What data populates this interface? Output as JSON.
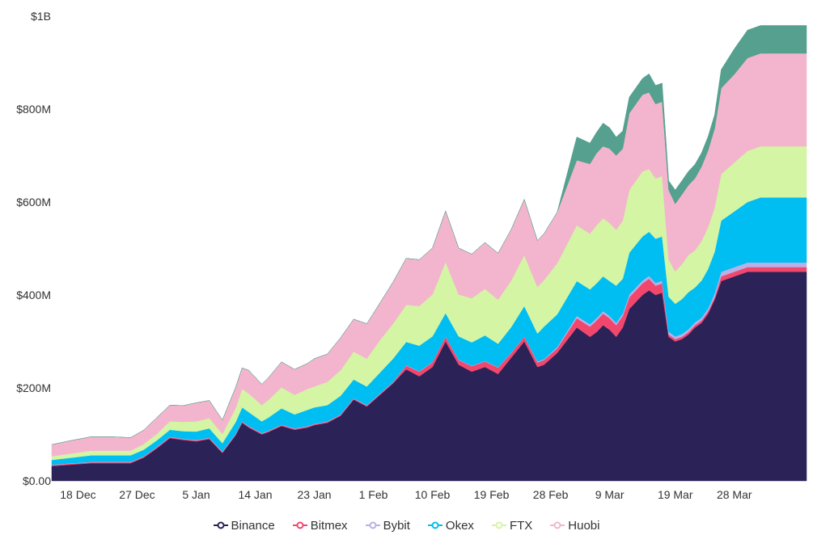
{
  "chart_data": {
    "type": "area",
    "stacked": true,
    "y_ticks": [
      "$0.00",
      "$200M",
      "$400M",
      "$600M",
      "$800M",
      "$1B"
    ],
    "ylim": [
      0,
      1000
    ],
    "x_range": [
      0,
      115
    ],
    "x_ticks": [
      {
        "label": "18 Dec",
        "x": 4
      },
      {
        "label": "27 Dec",
        "x": 13
      },
      {
        "label": "5 Jan",
        "x": 22
      },
      {
        "label": "14 Jan",
        "x": 31
      },
      {
        "label": "23 Jan",
        "x": 40
      },
      {
        "label": "1 Feb",
        "x": 49
      },
      {
        "label": "10 Feb",
        "x": 58
      },
      {
        "label": "19 Feb",
        "x": 67
      },
      {
        "label": "28 Feb",
        "x": 76
      },
      {
        "label": "9 Mar",
        "x": 85
      },
      {
        "label": "19 Mar",
        "x": 95
      },
      {
        "label": "28 Mar",
        "x": 104
      }
    ],
    "legend_position": "bottom",
    "keypoints": [
      0,
      3,
      6,
      9,
      12,
      14,
      16,
      18,
      20,
      22,
      24,
      26,
      28,
      29,
      30,
      32,
      33,
      35,
      37,
      39,
      40,
      42,
      44,
      46,
      48,
      50,
      52,
      54,
      56,
      58,
      60,
      62,
      64,
      66,
      68,
      70,
      72,
      74,
      75,
      77,
      80,
      82,
      83,
      84,
      85,
      86,
      87,
      88,
      90,
      91,
      92,
      93,
      94,
      95,
      96,
      97,
      98,
      99,
      100,
      101,
      102,
      104,
      106,
      108,
      110,
      112,
      114,
      115
    ],
    "series": [
      {
        "name": "Binance",
        "color": "#2b2257",
        "values": [
          32,
          35,
          38,
          38,
          38,
          50,
          70,
          92,
          88,
          85,
          90,
          60,
          98,
          125,
          115,
          100,
          105,
          118,
          110,
          115,
          120,
          125,
          140,
          175,
          160,
          185,
          210,
          240,
          225,
          245,
          300,
          250,
          235,
          245,
          230,
          265,
          300,
          245,
          250,
          275,
          330,
          310,
          320,
          335,
          325,
          310,
          330,
          370,
          400,
          410,
          400,
          405,
          310,
          300,
          305,
          315,
          330,
          340,
          360,
          390,
          430,
          440,
          450,
          450,
          450,
          450,
          450,
          450
        ]
      },
      {
        "name": "Bitmex",
        "color": "#f1476d",
        "values": [
          2,
          2,
          2,
          2,
          2,
          2,
          2,
          2,
          2,
          2,
          2,
          2,
          2,
          2,
          2,
          2,
          2,
          2,
          2,
          2,
          2,
          2,
          2,
          2,
          2,
          2,
          2,
          8,
          10,
          10,
          10,
          10,
          12,
          12,
          14,
          10,
          10,
          10,
          10,
          10,
          20,
          22,
          25,
          25,
          25,
          25,
          25,
          25,
          25,
          25,
          20,
          20,
          5,
          5,
          5,
          5,
          5,
          5,
          5,
          5,
          10,
          10,
          10,
          10,
          10,
          10,
          10,
          10
        ]
      },
      {
        "name": "Bybit",
        "color": "#b9b0e6",
        "values": [
          1,
          1,
          1,
          1,
          1,
          1,
          1,
          1,
          1,
          1,
          1,
          1,
          1,
          1,
          1,
          1,
          1,
          1,
          1,
          1,
          1,
          1,
          1,
          1,
          1,
          1,
          1,
          1,
          1,
          1,
          1,
          1,
          1,
          1,
          1,
          1,
          1,
          2,
          2,
          3,
          5,
          5,
          5,
          5,
          5,
          5,
          5,
          6,
          6,
          6,
          6,
          6,
          6,
          6,
          6,
          6,
          6,
          6,
          6,
          8,
          10,
          10,
          10,
          10,
          10,
          10,
          10,
          10
        ]
      },
      {
        "name": "Okex",
        "color": "#00bdf2",
        "values": [
          10,
          12,
          14,
          14,
          14,
          14,
          14,
          15,
          16,
          18,
          20,
          18,
          25,
          30,
          30,
          25,
          28,
          35,
          30,
          35,
          35,
          35,
          40,
          40,
          40,
          45,
          50,
          50,
          55,
          55,
          50,
          50,
          50,
          55,
          50,
          55,
          65,
          60,
          70,
          70,
          75,
          75,
          75,
          75,
          75,
          80,
          75,
          90,
          95,
          95,
          95,
          95,
          75,
          70,
          75,
          80,
          75,
          80,
          85,
          90,
          110,
          120,
          130,
          140,
          140,
          140,
          140,
          140
        ]
      },
      {
        "name": "FTX",
        "color": "#d4f5a4",
        "values": [
          8,
          9,
          10,
          10,
          10,
          12,
          14,
          18,
          20,
          22,
          22,
          20,
          30,
          40,
          40,
          35,
          38,
          45,
          42,
          45,
          45,
          50,
          55,
          60,
          60,
          70,
          75,
          80,
          85,
          90,
          110,
          90,
          95,
          100,
          95,
          100,
          110,
          100,
          100,
          110,
          120,
          120,
          125,
          125,
          125,
          120,
          125,
          135,
          140,
          135,
          130,
          130,
          80,
          70,
          75,
          80,
          80,
          85,
          90,
          95,
          100,
          105,
          110,
          110,
          110,
          110,
          110,
          110
        ]
      },
      {
        "name": "Huobi",
        "color": "#f3b5cd",
        "values": [
          25,
          28,
          30,
          30,
          28,
          30,
          35,
          35,
          35,
          40,
          38,
          30,
          45,
          45,
          50,
          45,
          48,
          55,
          55,
          55,
          60,
          60,
          70,
          70,
          75,
          80,
          90,
          100,
          100,
          100,
          110,
          100,
          95,
          100,
          100,
          110,
          120,
          100,
          100,
          110,
          140,
          150,
          155,
          155,
          160,
          160,
          155,
          165,
          165,
          165,
          160,
          160,
          150,
          145,
          150,
          150,
          155,
          160,
          165,
          170,
          185,
          190,
          200,
          200,
          200,
          200,
          200,
          200
        ]
      },
      {
        "name": "",
        "color": "#55a08e",
        "values": [
          0,
          0,
          0,
          0,
          0,
          0,
          0,
          0,
          0,
          0,
          0,
          0,
          0,
          0,
          0,
          0,
          0,
          0,
          0,
          0,
          0,
          0,
          0,
          0,
          0,
          0,
          0,
          0,
          0,
          0,
          0,
          0,
          0,
          0,
          0,
          0,
          0,
          0,
          0,
          0,
          50,
          45,
          45,
          50,
          45,
          40,
          38,
          35,
          35,
          40,
          40,
          40,
          20,
          30,
          30,
          30,
          30,
          30,
          30,
          30,
          40,
          55,
          60,
          60,
          60,
          60,
          60,
          60
        ]
      }
    ]
  }
}
